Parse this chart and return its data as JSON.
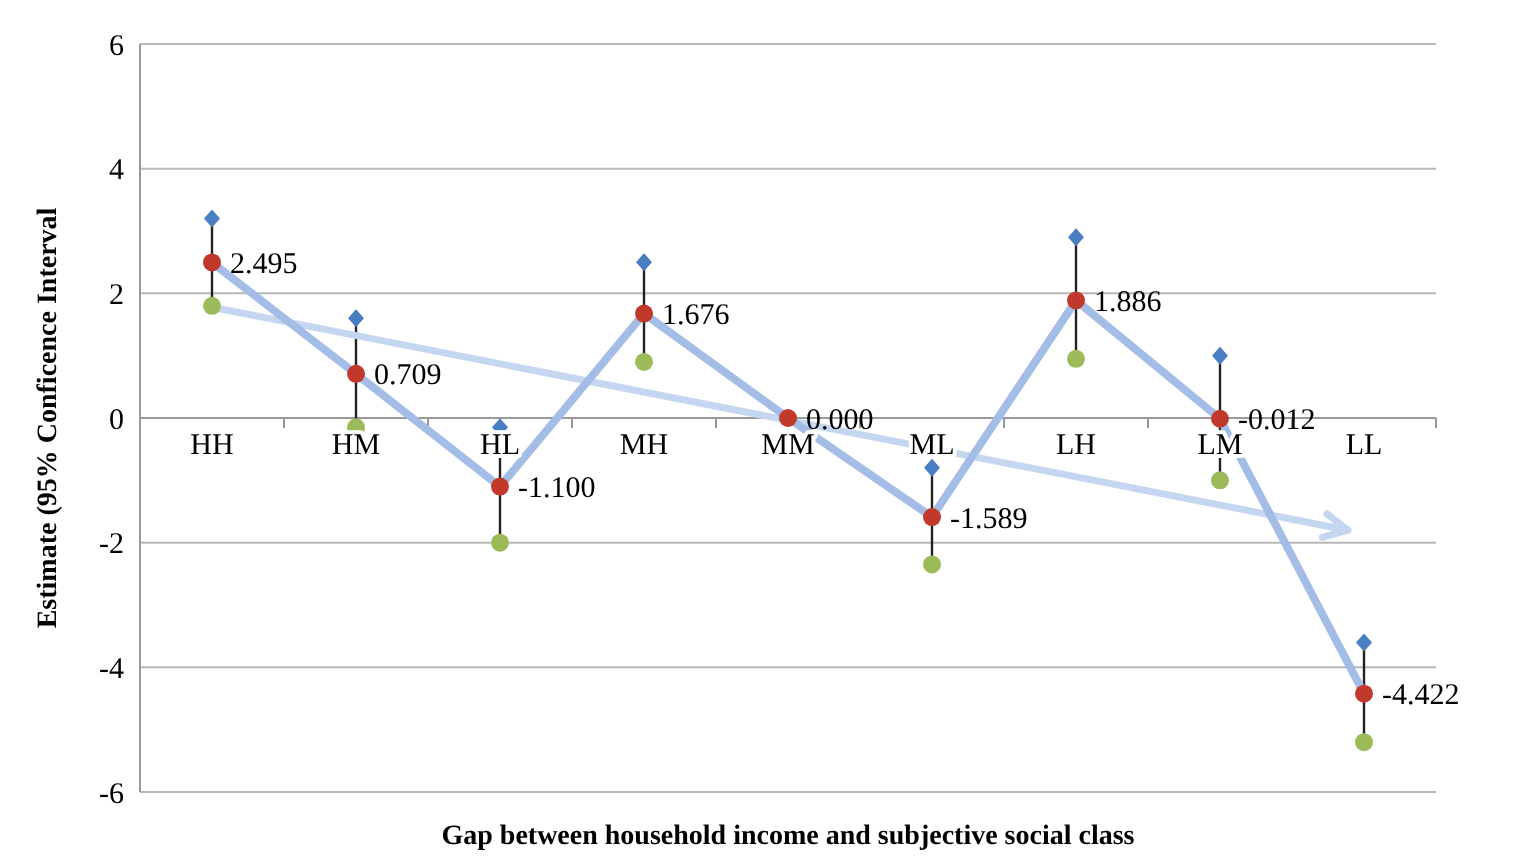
{
  "chart_data": {
    "type": "line",
    "xlabel": "Gap between household income and subjective social class",
    "ylabel": "Estimate  (95% Conficence Interval",
    "categories": [
      "HH",
      "HM",
      "HL",
      "MH",
      "MM",
      "ML",
      "LH",
      "LM",
      "LL"
    ],
    "ylim": [
      -6,
      6
    ],
    "yticks": [
      -6,
      -4,
      -2,
      0,
      2,
      4,
      6
    ],
    "grid": "y",
    "series": [
      {
        "color": "#a4bde6",
        "marker": "none",
        "values": [
          2.495,
          0.709,
          -1.1,
          1.676,
          0,
          -1.589,
          1.886,
          -0.012,
          -4.422
        ]
      },
      {
        "type": "scatter",
        "color": "#4a7ec2",
        "marker": "diamond",
        "values": [
          3.2,
          1.6,
          -0.15,
          2.5,
          null,
          -0.8,
          2.9,
          1.0,
          -3.6
        ]
      },
      {
        "type": "scatter",
        "color": "#9bbb59",
        "marker": "circle",
        "values": [
          1.8,
          -0.15,
          -2.0,
          0.9,
          null,
          -2.35,
          0.95,
          -1.0,
          -5.2
        ]
      },
      {
        "type": "scatter",
        "color": "#c0392b",
        "marker": "circle",
        "values": [
          2.495,
          0.709,
          -1.1,
          1.676,
          0,
          -1.589,
          1.886,
          -0.012,
          -4.422
        ],
        "value_labels": [
          "2.495",
          "0.709",
          "-1.100",
          "1.676",
          "0.000",
          "-1.589",
          "1.886",
          "-0.012",
          "-4.422"
        ]
      }
    ]
  }
}
